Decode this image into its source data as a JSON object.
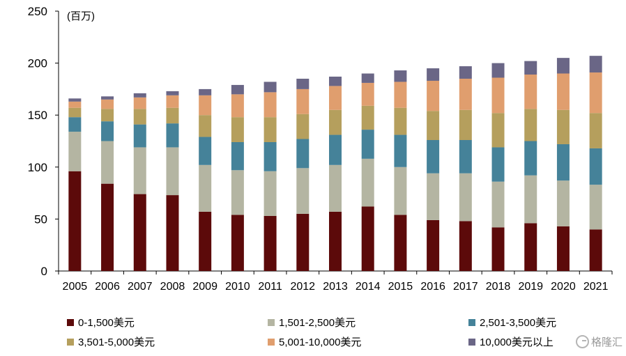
{
  "chart_data": {
    "type": "bar",
    "stacked": true,
    "unit_label": "(百万)",
    "categories": [
      "2005",
      "2006",
      "2007",
      "2008",
      "2009",
      "2010",
      "2011",
      "2012",
      "2013",
      "2014",
      "2015",
      "2016",
      "2017",
      "2018",
      "2019",
      "2020",
      "2021"
    ],
    "ylim": [
      0,
      250
    ],
    "yticks": [
      0,
      50,
      100,
      150,
      200,
      250
    ],
    "grid": false,
    "legend_position": "bottom",
    "series": [
      {
        "name": "0-1,500美元",
        "color": "#5c0a0a",
        "values": [
          96,
          84,
          74,
          73,
          57,
          54,
          53,
          55,
          57,
          62,
          54,
          49,
          48,
          42,
          46,
          43,
          40
        ]
      },
      {
        "name": "1,501-2,500美元",
        "color": "#b4b5a2",
        "values": [
          38,
          41,
          45,
          46,
          45,
          43,
          43,
          44,
          45,
          46,
          46,
          45,
          46,
          44,
          46,
          44,
          43
        ]
      },
      {
        "name": "2,501-3,500美元",
        "color": "#458299",
        "values": [
          14,
          19,
          22,
          23,
          27,
          27,
          28,
          28,
          29,
          28,
          31,
          32,
          32,
          33,
          33,
          35,
          35
        ]
      },
      {
        "name": "3,501-5,000美元",
        "color": "#b59f5d",
        "values": [
          9,
          12,
          15,
          15,
          21,
          24,
          24,
          24,
          24,
          23,
          26,
          28,
          29,
          33,
          31,
          33,
          34
        ]
      },
      {
        "name": "5,001-10,000美元",
        "color": "#e09e6e",
        "values": [
          6,
          9,
          11,
          12,
          19,
          22,
          24,
          24,
          23,
          22,
          25,
          29,
          30,
          34,
          33,
          35,
          39
        ]
      },
      {
        "name": "10,000美元以上",
        "color": "#6a6686",
        "values": [
          3,
          3,
          4,
          4,
          6,
          9,
          10,
          10,
          9,
          9,
          11,
          12,
          12,
          14,
          13,
          15,
          16
        ]
      }
    ]
  },
  "watermark": "格隆汇"
}
